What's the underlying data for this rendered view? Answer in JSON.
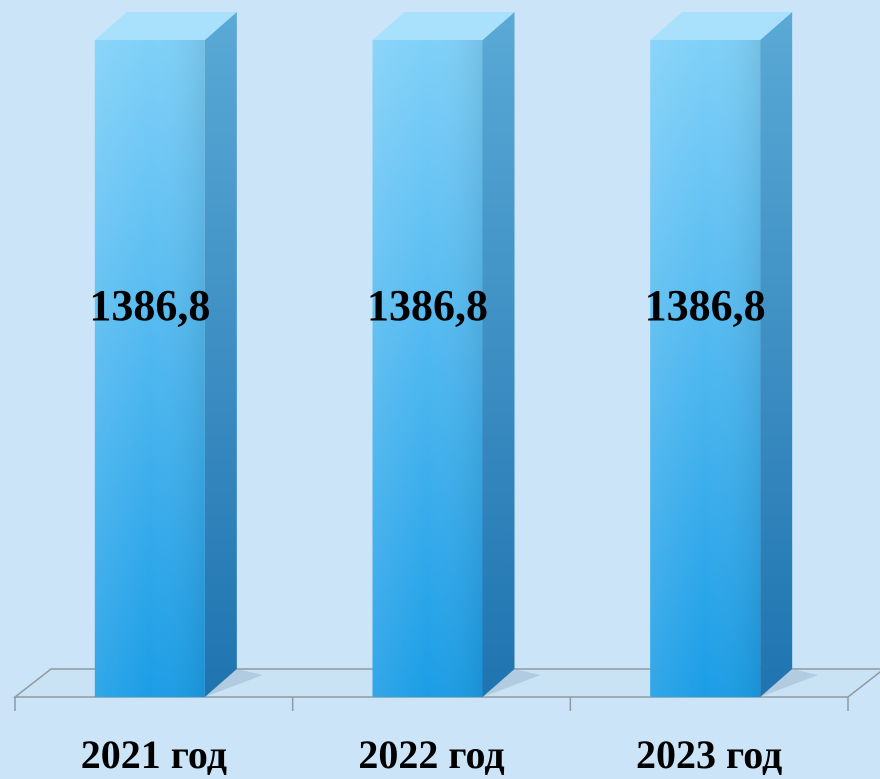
{
  "chart_data": {
    "type": "bar",
    "categories": [
      "2021 год",
      "2022 год",
      "2023 год"
    ],
    "values": [
      1386.8,
      1386.8,
      1386.8
    ],
    "value_labels": [
      "1386,8",
      "1386,8",
      "1386,8"
    ],
    "title": "",
    "xlabel": "",
    "ylabel": "",
    "ylim": [
      0,
      1386.8
    ],
    "grid": false,
    "legend": "none",
    "style": "3d-column"
  },
  "colors": {
    "background": "#cbe4f7",
    "bar_front_top": "#7fd0f8",
    "bar_front_bottom": "#1b9de6",
    "bar_side_top": "#5aa9d6",
    "bar_side_bottom": "#1f74b0",
    "bar_top": "#a9e0fb",
    "floor": "#c9e2f4",
    "axis_line": "#8f9aa3"
  }
}
